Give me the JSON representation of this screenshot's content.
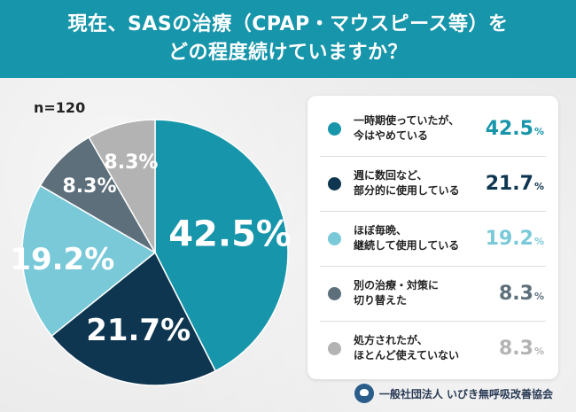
{
  "header": {
    "line1": "現在、SASの治療（CPAP・マウスピース等）を",
    "line2": "どの程度続けていますか？"
  },
  "sample_size": "n=120",
  "colors": {
    "header_bg": "#1795aa",
    "s1": "#1795aa",
    "s2": "#0e3650",
    "s3": "#79c9d9",
    "s4": "#5c6f7b",
    "s5": "#b3b3b3"
  },
  "chart_data": {
    "type": "pie",
    "unit": "%",
    "slices": [
      {
        "name": "一時期使っていたが、今はやめている",
        "lines": [
          "一時期使っていたが、",
          "今はやめている"
        ],
        "value": 42.5,
        "label": "42.5",
        "color": "#1795aa"
      },
      {
        "name": "週に数回など、部分的に使用している",
        "lines": [
          "週に数回など、",
          "部分的に使用している"
        ],
        "value": 21.7,
        "label": "21.7",
        "color": "#0e3650"
      },
      {
        "name": "ほぼ毎晩、継続して使用している",
        "lines": [
          "ほぼ毎晩、",
          "継続して使用している"
        ],
        "value": 19.2,
        "label": "19.2",
        "color": "#79c9d9"
      },
      {
        "name": "別の治療・対策に切り替えた",
        "lines": [
          "別の治療・対策に",
          "切り替えた"
        ],
        "value": 8.3,
        "label": "8.3",
        "color": "#5c6f7b"
      },
      {
        "name": "処方されたが、ほとんど使えていない",
        "lines": [
          "処方されたが、",
          "ほとんど使えていない"
        ],
        "value": 8.3,
        "label": "8.3",
        "color": "#b3b3b3"
      }
    ]
  },
  "footer": {
    "org": "一般社団法人 いびき無呼吸改善協会",
    "logo_icon": "org-logo-icon"
  }
}
